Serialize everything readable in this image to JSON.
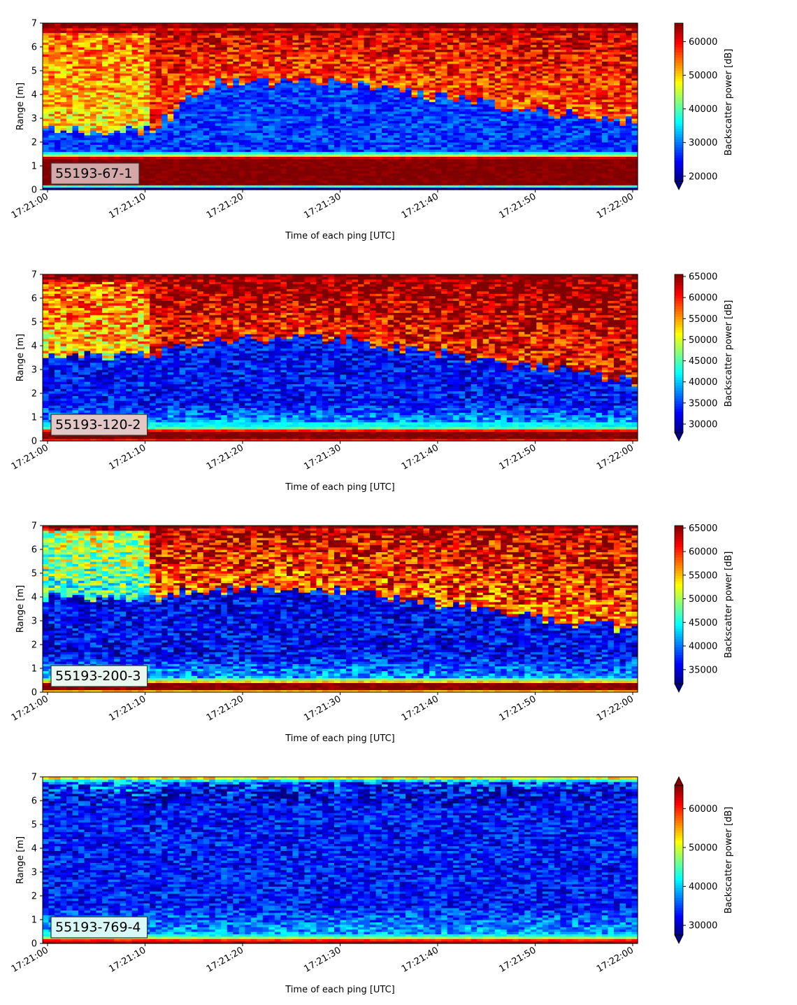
{
  "colormap": {
    "name": "jet",
    "stops": [
      "#00007f",
      "#0000ff",
      "#007fff",
      "#00ffff",
      "#7fff7f",
      "#ffff00",
      "#ff7f00",
      "#ff0000",
      "#7f0000"
    ]
  },
  "chart_data": [
    {
      "type": "heatmap",
      "label": "55193-67-1",
      "label_box_color": "#d4a8a8",
      "xlabel": "Time of each ping [UTC]",
      "ylabel": "Range [m]",
      "cbar_label": "Backscatter power [dB]",
      "xlim": [
        "17:20:59.5",
        "17:22:00.5"
      ],
      "ylim": [
        0,
        7
      ],
      "x_ticks": [
        "17:21:00",
        "17:21:10",
        "17:21:20",
        "17:21:30",
        "17:21:40",
        "17:21:50",
        "17:22:00"
      ],
      "y_ticks": [
        0,
        1,
        2,
        3,
        4,
        5,
        6,
        7
      ],
      "clim": [
        18500,
        65500
      ],
      "cbar_ticks": [
        20000,
        30000,
        40000,
        50000,
        60000
      ],
      "extend": "min",
      "bottom_band": [
        20000,
        38000,
        65500,
        65500,
        65500,
        65500,
        65500,
        65500,
        65500,
        65500,
        65500,
        65500,
        65500,
        62000,
        45000,
        36000
      ],
      "top_band": [
        64000,
        60000,
        65500,
        65500
      ],
      "inter_start": 2.5,
      "inter_mid": 4.5,
      "inter_end": 2.8,
      "upper_value": 56000,
      "lower_value": 27000,
      "early_value": 49000,
      "near_value": 40000
    },
    {
      "type": "heatmap",
      "label": "55193-120-2",
      "label_box_color": "#e3c7c7",
      "xlabel": "Time of each ping [UTC]",
      "ylabel": "Range [m]",
      "cbar_label": "Backscatter power [dB]",
      "xlim": [
        "17:20:59.5",
        "17:22:00.5"
      ],
      "ylim": [
        0,
        7
      ],
      "x_ticks": [
        "17:21:00",
        "17:21:10",
        "17:21:20",
        "17:21:30",
        "17:21:40",
        "17:21:50",
        "17:22:00"
      ],
      "y_ticks": [
        0,
        1,
        2,
        3,
        4,
        5,
        6,
        7
      ],
      "clim": [
        28000,
        65500
      ],
      "cbar_ticks": [
        30000,
        35000,
        40000,
        45000,
        50000,
        55000,
        60000,
        65000
      ],
      "extend": "min",
      "bottom_band": [
        60000,
        65500,
        65500,
        65500,
        60000,
        45000,
        42000,
        42000
      ],
      "top_band": [
        63000,
        65500,
        65500
      ],
      "inter_start": 3.6,
      "inter_mid": 4.3,
      "inter_end": 2.5,
      "upper_value": 60000,
      "lower_value": 33000,
      "early_value": 52000,
      "near_value": 40000
    },
    {
      "type": "heatmap",
      "label": "55193-200-3",
      "label_box_color": "#eaf7ee",
      "xlabel": "Time of each ping [UTC]",
      "ylabel": "Range [m]",
      "cbar_label": "Backscatter power [dB]",
      "xlim": [
        "17:20:59.5",
        "17:22:00.5"
      ],
      "ylim": [
        0,
        7
      ],
      "x_ticks": [
        "17:21:00",
        "17:21:10",
        "17:21:20",
        "17:21:30",
        "17:21:40",
        "17:21:50",
        "17:22:00"
      ],
      "y_ticks": [
        0,
        1,
        2,
        3,
        4,
        5,
        6,
        7
      ],
      "clim": [
        32000,
        65500
      ],
      "cbar_ticks": [
        35000,
        40000,
        45000,
        50000,
        55000,
        60000,
        65000
      ],
      "extend": "min",
      "bottom_band": [
        55000,
        65500,
        65500,
        65500,
        55000,
        48000
      ],
      "top_band": [
        62000,
        65500
      ],
      "inter_start": 4.0,
      "inter_mid": 4.3,
      "inter_end": 2.6,
      "upper_value": 58000,
      "lower_value": 36000,
      "early_value": 46000,
      "near_value": 42000
    },
    {
      "type": "heatmap",
      "label": "55193-769-4",
      "label_box_color": "#d8f7f7",
      "xlabel": "Time of each ping [UTC]",
      "ylabel": "Range [m]",
      "cbar_label": "Backscatter power [dB]",
      "xlim": [
        "17:20:59.5",
        "17:22:00.5"
      ],
      "ylim": [
        0,
        7
      ],
      "x_ticks": [
        "17:21:00",
        "17:21:10",
        "17:21:20",
        "17:21:30",
        "17:21:40",
        "17:21:50",
        "17:22:00"
      ],
      "y_ticks": [
        0,
        1,
        2,
        3,
        4,
        5,
        6,
        7
      ],
      "clim": [
        27500,
        66000
      ],
      "cbar_ticks": [
        30000,
        40000,
        50000,
        60000
      ],
      "extend": "both",
      "bottom_band": [
        65000,
        60000,
        48000,
        42000
      ],
      "top_band": [
        42000,
        52000
      ],
      "inter_start": 6.0,
      "inter_mid": 6.0,
      "inter_end": 6.0,
      "upper_value": 30000,
      "lower_value": 33000,
      "early_value": 32000,
      "near_value": 38000
    }
  ]
}
